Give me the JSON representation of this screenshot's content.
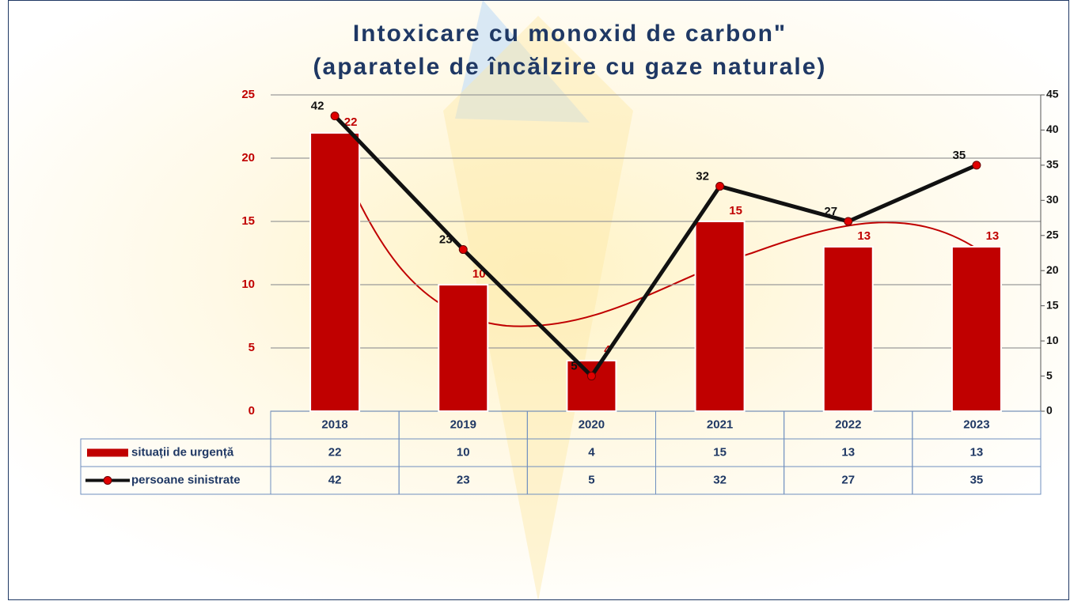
{
  "chart_data": {
    "type": "bar_line",
    "title": "Intoxicare cu monoxid de carbon\"",
    "subtitle": "(aparatele de încălzire cu gaze naturale)",
    "categories": [
      "2018",
      "2019",
      "2020",
      "2021",
      "2022",
      "2023"
    ],
    "series": [
      {
        "name": "situații de urgență",
        "color": "#c00000",
        "type": "bar",
        "values": [
          22,
          10,
          4,
          15,
          13,
          13
        ]
      },
      {
        "name": "persoane sinistrate",
        "color": "#111111",
        "type": "line",
        "axis": "y2",
        "values": [
          42,
          23,
          5,
          32,
          27,
          35
        ]
      }
    ],
    "ylim": [
      0,
      25
    ],
    "yticks": [
      0,
      5,
      10,
      15,
      20,
      25
    ],
    "y2lim": [
      0,
      45
    ],
    "y2ticks": [
      0,
      5,
      10,
      15,
      20,
      25,
      30,
      35,
      40,
      45
    ],
    "grid": true
  }
}
